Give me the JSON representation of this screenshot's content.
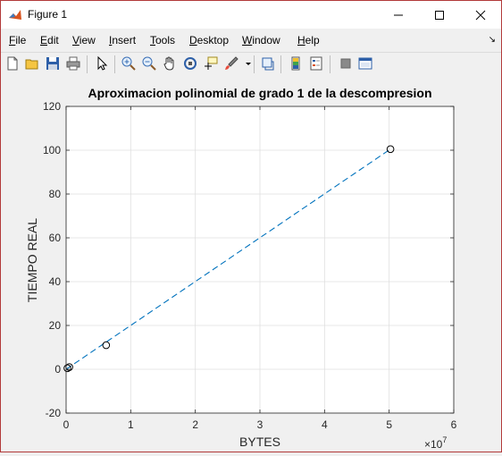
{
  "window": {
    "title": "Figure 1"
  },
  "menu": {
    "items": [
      {
        "label": "File",
        "u": "F",
        "rest": "ile"
      },
      {
        "label": "Edit",
        "u": "E",
        "rest": "dit"
      },
      {
        "label": "View",
        "u": "V",
        "rest": "iew"
      },
      {
        "label": "Insert",
        "u": "I",
        "rest": "nsert"
      },
      {
        "label": "Tools",
        "u": "T",
        "rest": "ools"
      },
      {
        "label": "Desktop",
        "u": "D",
        "rest": "esktop"
      },
      {
        "label": "Window",
        "u": "W",
        "rest": "indow"
      },
      {
        "label": "Help",
        "u": "H",
        "rest": "elp"
      }
    ]
  },
  "toolbar": {
    "icons": [
      "new-figure-icon",
      "open-file-icon",
      "save-icon",
      "print-icon",
      "pointer-icon",
      "zoom-in-icon",
      "zoom-out-icon",
      "pan-icon",
      "rotate-3d-icon",
      "data-cursor-icon",
      "brush-icon",
      "link-plot-icon",
      "colorbar-icon",
      "legend-icon",
      "hide-plot-tools-icon",
      "show-plot-tools-icon"
    ]
  },
  "chart_data": {
    "type": "scatter",
    "title": "Aproximacion polinomial de grado 1 de la descompresion",
    "xlabel": "BYTES",
    "ylabel": "TIEMPO REAL",
    "x_exponent_label": "×10",
    "x_exponent_power": "7",
    "xlim": [
      0,
      6
    ],
    "ylim": [
      -20,
      120
    ],
    "x_ticks": [
      0,
      1,
      2,
      3,
      4,
      5,
      6
    ],
    "y_ticks": [
      -20,
      0,
      20,
      40,
      60,
      80,
      100,
      120
    ],
    "x_tick_labels": [
      "0",
      "1",
      "2",
      "3",
      "4",
      "5",
      "6"
    ],
    "y_tick_labels": [
      "-20",
      "0",
      "20",
      "40",
      "60",
      "80",
      "100",
      "120"
    ],
    "grid": true,
    "series": [
      {
        "type": "scatter",
        "marker": "circle",
        "x": [
          0.02,
          0.05,
          0.62,
          5.02
        ],
        "y": [
          0.5,
          1.0,
          11,
          100.5
        ]
      },
      {
        "type": "line",
        "style": "dashed",
        "color": "#0072bd",
        "x": [
          0.0,
          5.02
        ],
        "y": [
          0.0,
          100.5
        ]
      }
    ]
  }
}
